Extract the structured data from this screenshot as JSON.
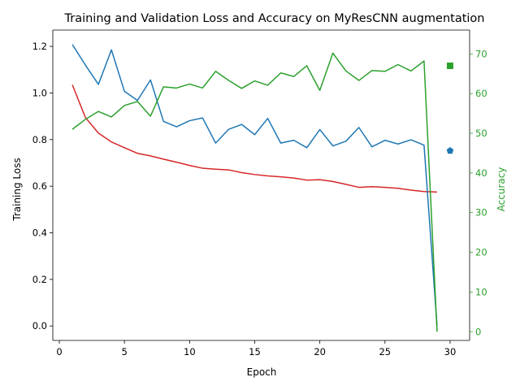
{
  "chart_data": {
    "type": "line",
    "title": "Training and Validation Loss and Accuracy on MyResCNN augmentation",
    "xlabel": "Epoch",
    "ylabel_left": "Training Loss",
    "ylabel_right": "Accuracy",
    "xlim": [
      -0.5,
      31.5
    ],
    "ylim_left": [
      -0.062,
      1.27
    ],
    "ylim_right": [
      -2.2,
      76.0
    ],
    "x_ticks": [
      0,
      5,
      10,
      15,
      20,
      25,
      30
    ],
    "y_ticks_left": [
      0.0,
      0.2,
      0.4,
      0.6,
      0.8,
      1.0,
      1.2
    ],
    "y_ticks_right": [
      0,
      10,
      20,
      30,
      40,
      50,
      60,
      70
    ],
    "x_tick_labels": [
      "0",
      "5",
      "10",
      "15",
      "20",
      "25",
      "30"
    ],
    "y_tick_labels_left": [
      "0.0",
      "0.2",
      "0.4",
      "0.6",
      "0.8",
      "1.0",
      "1.2"
    ],
    "y_tick_labels_right": [
      "0",
      "10",
      "20",
      "30",
      "40",
      "50",
      "60",
      "70"
    ],
    "grid": false,
    "colors": {
      "training_loss": "#d62728",
      "validation_loss": "#1f77b4",
      "accuracy": "#2ca02c",
      "right_axis": "#2ca02c"
    },
    "series": [
      {
        "axis": "left",
        "color": "#d62728",
        "x": [
          1,
          2,
          3,
          4,
          5,
          6,
          7,
          8,
          9,
          10,
          11,
          12,
          13,
          14,
          15,
          16,
          17,
          18,
          19,
          20,
          21,
          22,
          23,
          24,
          25,
          26,
          27,
          28,
          29
        ],
        "values": [
          1.035,
          0.895,
          0.828,
          0.79,
          0.765,
          0.741,
          0.73,
          0.716,
          0.703,
          0.689,
          0.677,
          0.673,
          0.67,
          0.658,
          0.65,
          0.644,
          0.64,
          0.635,
          0.626,
          0.628,
          0.62,
          0.608,
          0.595,
          0.598,
          0.595,
          0.591,
          0.583,
          0.577,
          0.575
        ]
      },
      {
        "axis": "left",
        "color": "#1f77b4",
        "x": [
          1,
          2,
          3,
          4,
          5,
          6,
          7,
          8,
          9,
          10,
          11,
          12,
          13,
          14,
          15,
          16,
          17,
          18,
          19,
          20,
          21,
          22,
          23,
          24,
          25,
          26,
          27,
          28,
          29
        ],
        "values": [
          1.208,
          1.12,
          1.037,
          1.185,
          1.007,
          0.968,
          1.056,
          0.878,
          0.855,
          0.881,
          0.893,
          0.785,
          0.844,
          0.865,
          0.821,
          0.891,
          0.785,
          0.797,
          0.765,
          0.843,
          0.773,
          0.793,
          0.852,
          0.769,
          0.797,
          0.781,
          0.799,
          0.776,
          0.0
        ],
        "end_marker": {
          "shape": "pentagon",
          "x": 30,
          "y": 0.752
        }
      },
      {
        "axis": "right",
        "color": "#2ca02c",
        "x": [
          1,
          2,
          3,
          4,
          5,
          6,
          7,
          8,
          9,
          10,
          11,
          12,
          13,
          14,
          15,
          16,
          17,
          18,
          19,
          20,
          21,
          22,
          23,
          24,
          25,
          26,
          27,
          28,
          29
        ],
        "values": [
          51.0,
          53.5,
          55.5,
          54.1,
          57.0,
          58.0,
          54.3,
          61.7,
          61.4,
          62.4,
          61.4,
          65.6,
          63.3,
          61.3,
          63.2,
          62.1,
          65.2,
          64.3,
          67.0,
          60.8,
          70.2,
          65.7,
          63.3,
          65.8,
          65.6,
          67.3,
          65.7,
          68.2,
          0.0
        ],
        "end_marker": {
          "shape": "square",
          "x": 30,
          "y": 67.0
        }
      }
    ]
  }
}
